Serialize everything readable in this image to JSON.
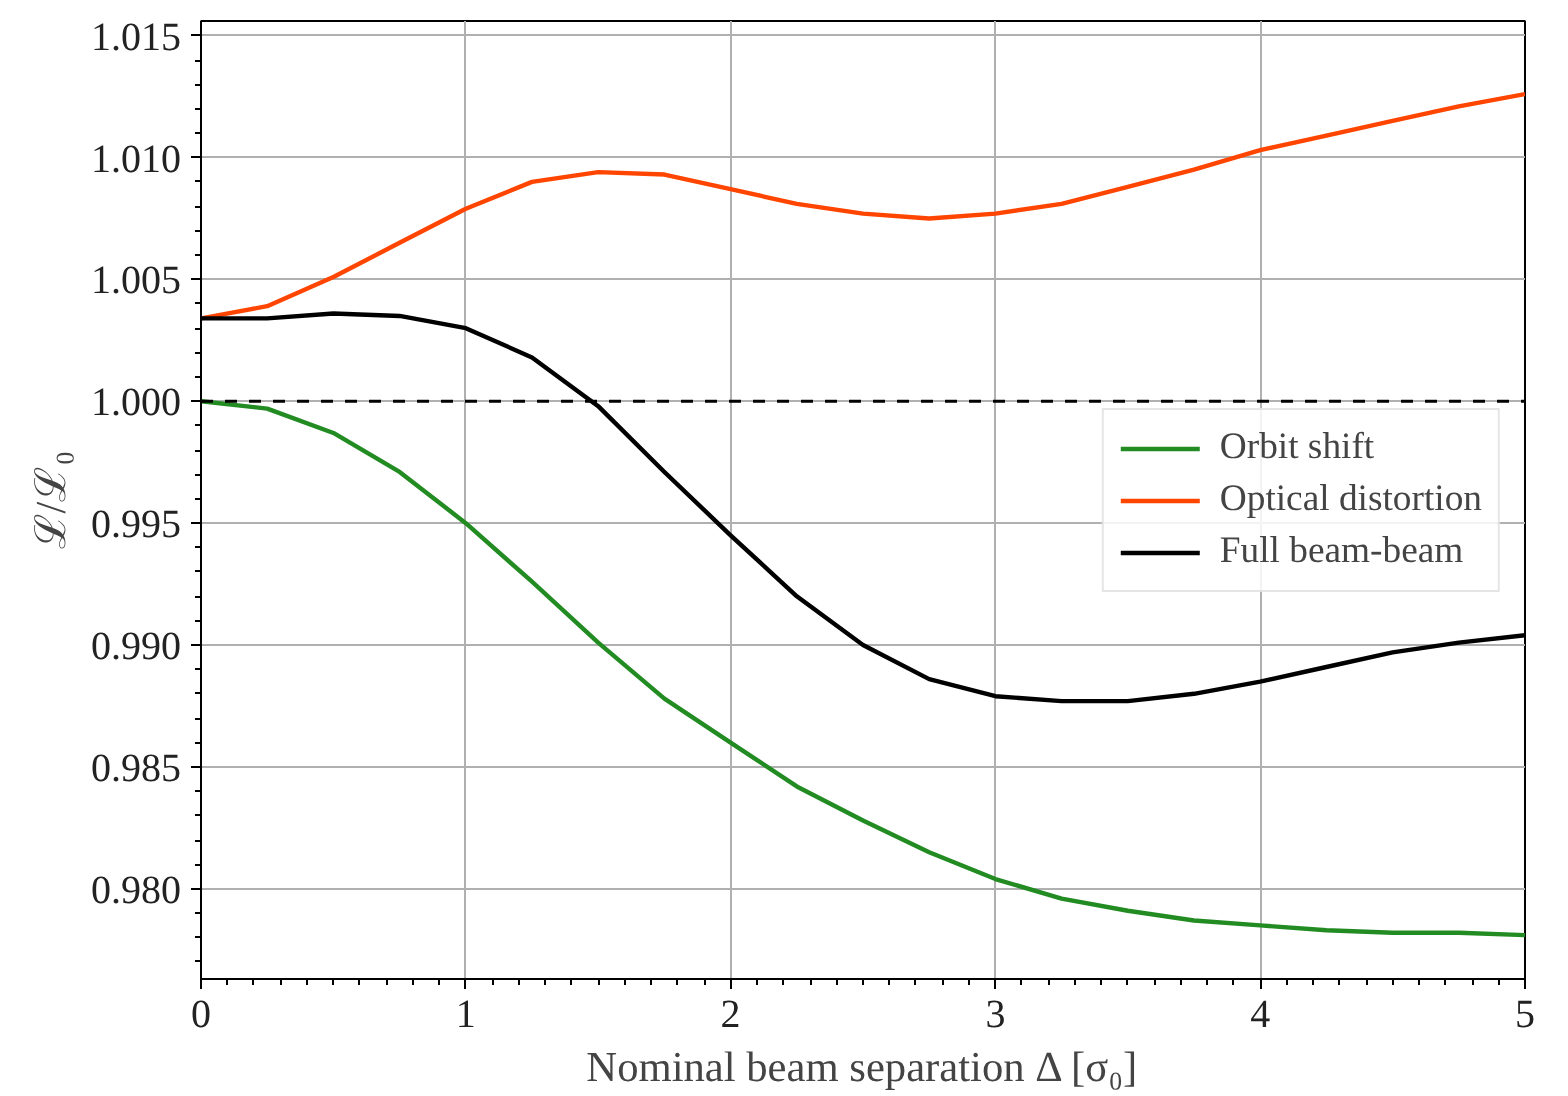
{
  "chart_data": {
    "type": "line",
    "xlabel": "Nominal beam separation Δ [σ₀]",
    "ylabel": "ℒ/ℒ₀",
    "x": [
      0,
      0.25,
      0.5,
      0.75,
      1,
      1.25,
      1.5,
      1.75,
      2,
      2.25,
      2.5,
      2.75,
      3,
      3.25,
      3.5,
      3.75,
      4,
      4.25,
      4.5,
      4.75,
      5
    ],
    "series": [
      {
        "name": "Orbit shift",
        "color": "#228b22",
        "values": [
          1.0,
          0.9997,
          0.9987,
          0.9971,
          0.995,
          0.9926,
          0.9901,
          0.9878,
          0.986,
          0.9842,
          0.9828,
          0.9815,
          0.9804,
          0.9796,
          0.9791,
          0.9787,
          0.9785,
          0.9783,
          0.9782,
          0.9782,
          0.9781
        ]
      },
      {
        "name": "Optical distortion",
        "color": "#ff4500",
        "values": [
          1.0034,
          1.0039,
          1.0051,
          1.0065,
          1.0079,
          1.009,
          1.0094,
          1.0093,
          1.0087,
          1.0081,
          1.0077,
          1.0075,
          1.0077,
          1.0081,
          1.0088,
          1.0095,
          1.0103,
          1.0109,
          1.0115,
          1.0121,
          1.0126
        ]
      },
      {
        "name": "Full beam-beam",
        "color": "#000000",
        "values": [
          1.0034,
          1.0034,
          1.0036,
          1.0035,
          1.003,
          1.0018,
          0.9998,
          0.9971,
          0.9945,
          0.992,
          0.99,
          0.9886,
          0.9879,
          0.9877,
          0.9877,
          0.988,
          0.9885,
          0.9891,
          0.9897,
          0.9901,
          0.9904
        ]
      }
    ],
    "xlim": [
      0,
      5
    ],
    "xticks": [
      0,
      1,
      2,
      3,
      4,
      5
    ],
    "ylim": [
      0.9763,
      1.0156
    ],
    "yticks": [
      {
        "value": 0.98,
        "label": "0.980"
      },
      {
        "value": 0.985,
        "label": "0.985"
      },
      {
        "value": 0.99,
        "label": "0.990"
      },
      {
        "value": 0.995,
        "label": "0.995"
      },
      {
        "value": 1.0,
        "label": "1.000"
      },
      {
        "value": 1.005,
        "label": "1.005"
      },
      {
        "value": 1.01,
        "label": "1.010"
      },
      {
        "value": 1.015,
        "label": "1.015"
      }
    ],
    "ref_lines": [
      {
        "axis": "y",
        "value": 1.0,
        "color": "#000000",
        "line_style": "dashed"
      }
    ],
    "grid": true,
    "legend": "right",
    "line_style": "solid",
    "marker": "none"
  }
}
